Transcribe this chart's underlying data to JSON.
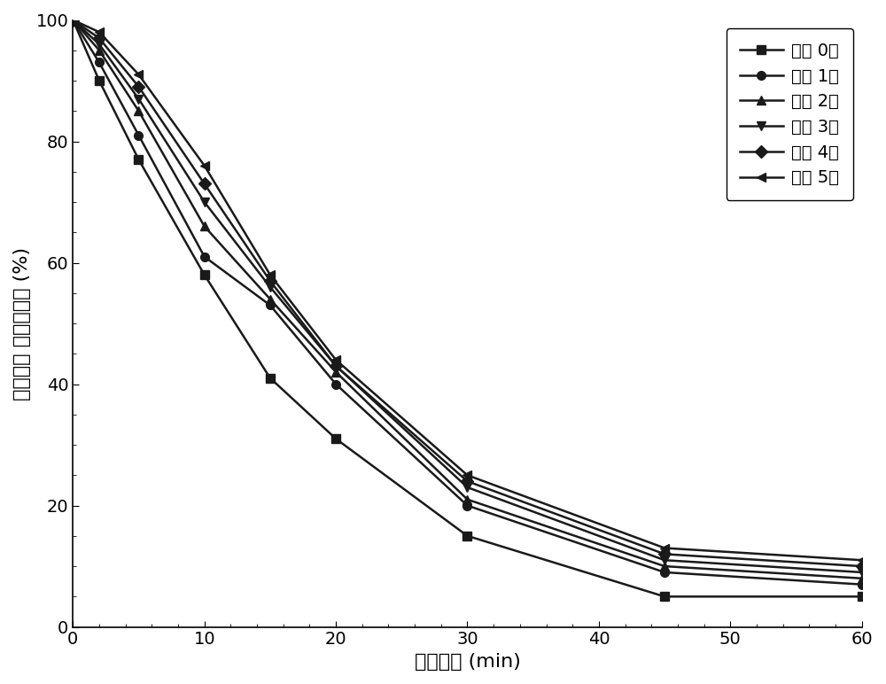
{
  "series": [
    {
      "label": "回用 0次",
      "marker": "s",
      "x": [
        0,
        2,
        5,
        10,
        15,
        20,
        30,
        45,
        60
      ],
      "y": [
        100,
        90,
        77,
        58,
        41,
        31,
        15,
        5,
        5
      ]
    },
    {
      "label": "回用 1次",
      "marker": "o",
      "x": [
        0,
        2,
        5,
        10,
        15,
        20,
        30,
        45,
        60
      ],
      "y": [
        100,
        93,
        81,
        61,
        53,
        40,
        20,
        9,
        7
      ]
    },
    {
      "label": "回用 2次",
      "marker": "^",
      "x": [
        0,
        2,
        5,
        10,
        15,
        20,
        30,
        45,
        60
      ],
      "y": [
        100,
        95,
        85,
        66,
        54,
        42,
        21,
        10,
        8
      ]
    },
    {
      "label": "回用 3次",
      "marker": "v",
      "x": [
        0,
        2,
        5,
        10,
        15,
        20,
        30,
        45,
        60
      ],
      "y": [
        100,
        96,
        87,
        70,
        56,
        43,
        23,
        11,
        9
      ]
    },
    {
      "label": "回用 4次",
      "marker": "D",
      "x": [
        0,
        2,
        5,
        10,
        15,
        20,
        30,
        45,
        60
      ],
      "y": [
        100,
        97,
        89,
        73,
        57,
        43,
        24,
        12,
        10
      ]
    },
    {
      "label": "回用 5次",
      "marker": "<",
      "x": [
        0,
        2,
        5,
        10,
        15,
        20,
        30,
        45,
        60
      ],
      "y": [
        100,
        98,
        91,
        76,
        58,
        44,
        25,
        13,
        11
      ]
    }
  ],
  "xlabel": "反应时间 (min)",
  "ylabel": "恩诺沙星 剩余百分比 (%)",
  "xlim": [
    0,
    60
  ],
  "ylim": [
    0,
    100
  ],
  "xticks": [
    0,
    10,
    20,
    30,
    40,
    50,
    60
  ],
  "yticks": [
    0,
    20,
    40,
    60,
    80,
    100
  ],
  "color": "#1a1a1a",
  "linewidth": 1.8,
  "markersize": 7,
  "legend_fontsize": 14,
  "axis_fontsize": 16,
  "tick_fontsize": 14
}
